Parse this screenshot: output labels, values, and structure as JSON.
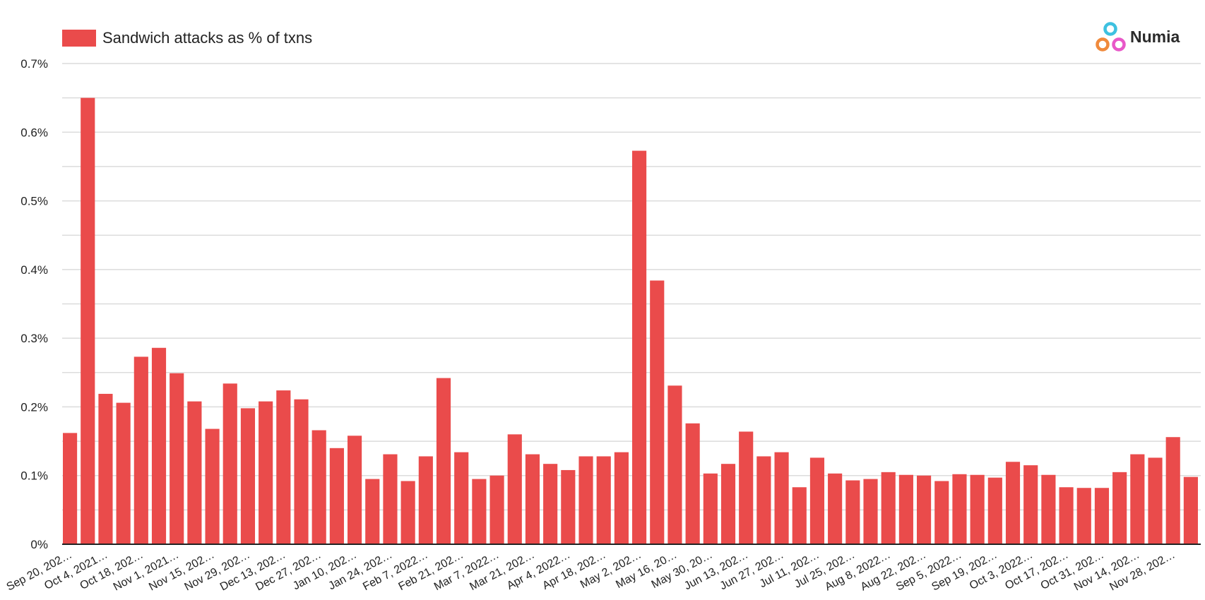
{
  "chart_data": {
    "type": "bar",
    "legend": {
      "label": "Sandwich attacks as % of txns",
      "placement": "top-left"
    },
    "brand": {
      "name": "Numia"
    },
    "ylim": [
      0,
      0.7
    ],
    "y_ticks": [
      "0%",
      "0.1%",
      "0.2%",
      "0.3%",
      "0.4%",
      "0.5%",
      "0.6%",
      "0.7%"
    ],
    "grid": true,
    "colors": {
      "bar": "#ea4b4b",
      "grid": "#dcdcdc",
      "logo": [
        "#3ec1e0",
        "#f08a3c",
        "#e858c8"
      ]
    },
    "x_tick_labels": [
      "Sep 20, 202…",
      "Oct 4, 2021…",
      "Oct 18, 202…",
      "Nov 1, 2021…",
      "Nov 15, 202…",
      "Nov 29, 202…",
      "Dec 13, 202…",
      "Dec 27, 202…",
      "Jan 10, 202…",
      "Jan 24, 202…",
      "Feb 7, 2022…",
      "Feb 21, 202…",
      "Mar 7, 2022…",
      "Mar 21, 202…",
      "Apr 4, 2022…",
      "Apr 18, 202…",
      "May 2, 202…",
      "May 16, 20…",
      "May 30, 20…",
      "Jun 13, 202…",
      "Jun 27, 202…",
      "Jul 11, 202…",
      "Jul 25, 202…",
      "Aug 8, 2022…",
      "Aug 22, 202…",
      "Sep 5, 2022…",
      "Sep 19, 202…",
      "Oct 3, 2022…",
      "Oct 17, 202…",
      "Oct 31, 202…",
      "Nov 14, 202…",
      "Nov 28, 202…"
    ],
    "values": [
      0.162,
      0.65,
      0.219,
      0.206,
      0.273,
      0.286,
      0.249,
      0.208,
      0.168,
      0.234,
      0.198,
      0.208,
      0.224,
      0.211,
      0.166,
      0.14,
      0.158,
      0.095,
      0.131,
      0.092,
      0.128,
      0.242,
      0.134,
      0.095,
      0.1,
      0.16,
      0.131,
      0.117,
      0.108,
      0.128,
      0.128,
      0.134,
      0.573,
      0.384,
      0.231,
      0.176,
      0.103,
      0.117,
      0.164,
      0.128,
      0.134,
      0.083,
      0.126,
      0.103,
      0.093,
      0.095,
      0.105,
      0.101,
      0.1,
      0.092,
      0.102,
      0.101,
      0.097,
      0.12,
      0.115,
      0.101,
      0.083,
      0.082,
      0.082,
      0.105,
      0.131,
      0.126,
      0.156,
      0.098
    ]
  }
}
